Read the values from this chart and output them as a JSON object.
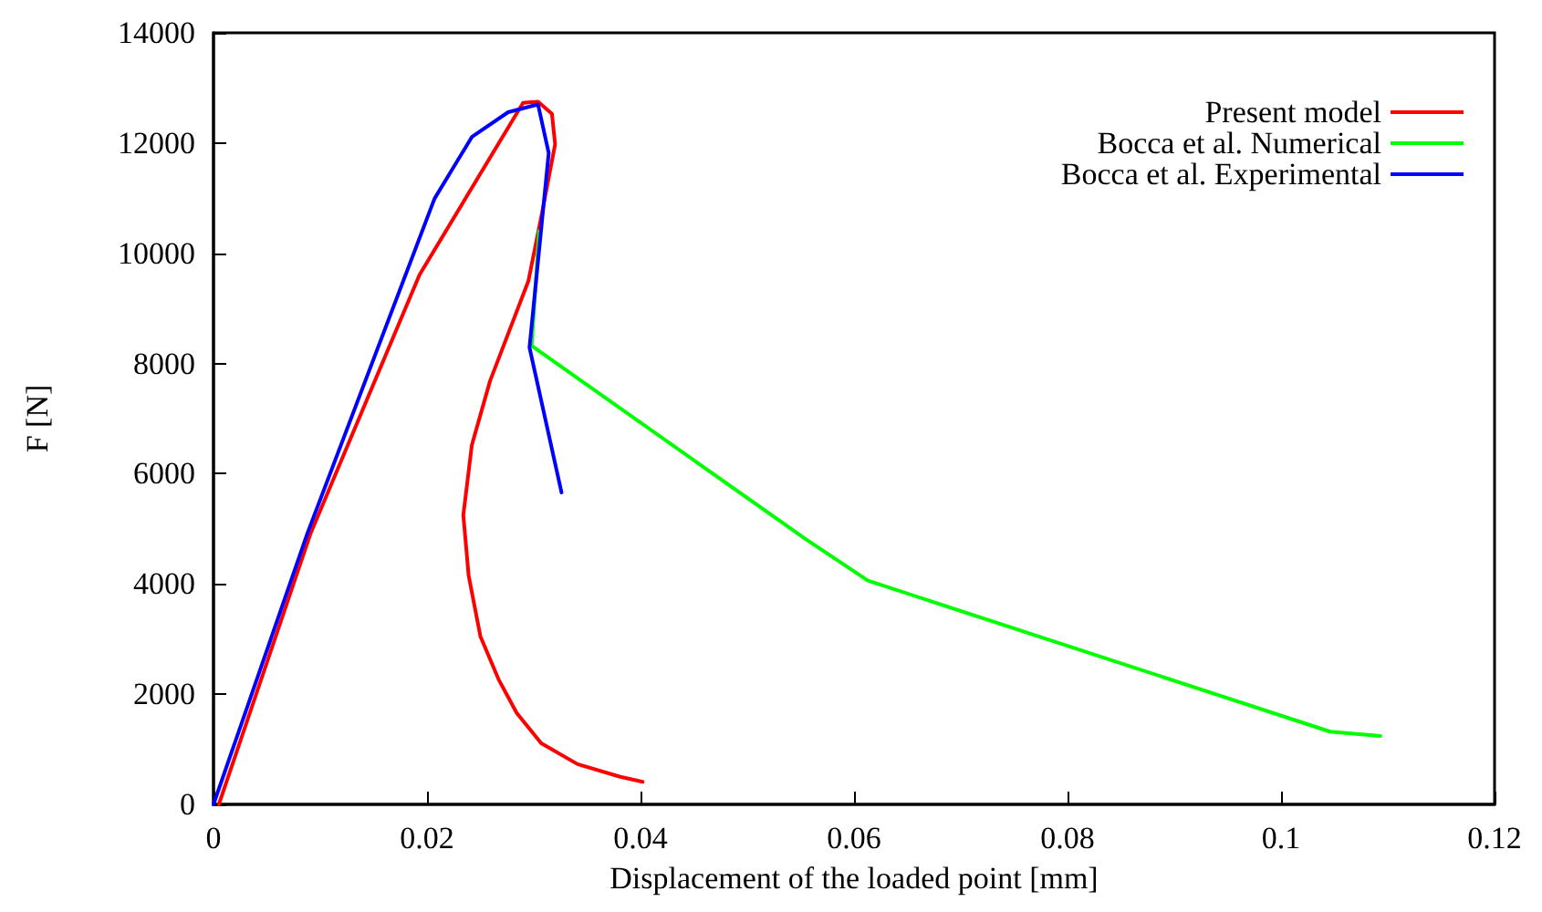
{
  "chart_data": {
    "type": "line",
    "xlabel": "Displacement of the loaded point [mm]",
    "ylabel": "F [N]",
    "xlim": [
      0,
      0.12
    ],
    "xticks": [
      0,
      0.02,
      0.04,
      0.06,
      0.08,
      0.1,
      0.12
    ],
    "ylim": [
      0,
      14000
    ],
    "yticks": [
      0,
      2000,
      4000,
      6000,
      8000,
      10000,
      12000,
      14000
    ],
    "grid": false,
    "legend": "top right",
    "marker": "none",
    "line_style": "solid",
    "series": [
      {
        "name": "Present model",
        "color": "#ff0000",
        "x": [
          0.0005,
          0.0091,
          0.0193,
          0.029,
          0.0304,
          0.0317,
          0.032,
          0.0307,
          0.0295,
          0.0259,
          0.0242,
          0.0234,
          0.0239,
          0.025,
          0.0267,
          0.0284,
          0.0307,
          0.0341,
          0.0381,
          0.0402
        ],
        "values": [
          0,
          4920,
          9610,
          12730,
          12750,
          12530,
          11980,
          10660,
          9500,
          7680,
          6520,
          5250,
          4150,
          3050,
          2270,
          1660,
          1110,
          730,
          500,
          410
        ]
      },
      {
        "name": "Bocca et al. Numerical",
        "color": "#00ff00",
        "x": [
          0.0305,
          0.0298,
          0.0555,
          0.0613,
          0.1046,
          0.1093
        ],
        "values": [
          10400,
          8320,
          4810,
          4060,
          1320,
          1240
        ]
      },
      {
        "name": "Bocca et al. Experimental",
        "color": "#0000ff",
        "x": [
          0,
          0.0088,
          0.0207,
          0.0242,
          0.0276,
          0.0304,
          0.0314,
          0.0296,
          0.0326
        ],
        "values": [
          0,
          4920,
          10990,
          12110,
          12560,
          12700,
          11820,
          8290,
          5660
        ]
      }
    ]
  }
}
